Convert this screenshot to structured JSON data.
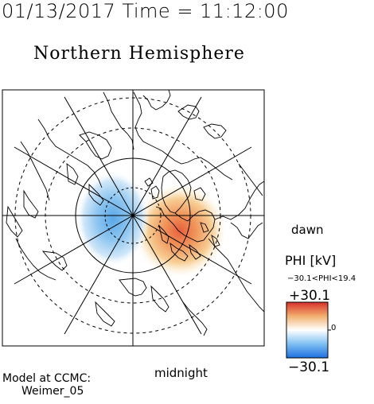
{
  "header": {
    "timestamp": "01/13/2017 Time = 11:12:00",
    "title": "Northern Hemisphere"
  },
  "map": {
    "labels": {
      "dawn": "dawn",
      "midnight": "midnight"
    },
    "projection": "polar",
    "grid_circles": 4,
    "meridian_spokes": 12,
    "potential_cells": [
      {
        "sign": "positive",
        "color": "#e8603c",
        "side": "dawn"
      },
      {
        "sign": "negative",
        "color": "#5aa8e8",
        "side": "dusk"
      }
    ]
  },
  "colorbar": {
    "title": "PHI [kV]",
    "range_text": "−30.1<PHI<19.4",
    "max_label": "+30.1",
    "min_label": "−30.1",
    "zero_label": "0",
    "colors": [
      "#1e6fe0",
      "#7fc0f2",
      "#ffffff",
      "#f2b070",
      "#d8302a"
    ]
  },
  "credit": {
    "line1": "Model at CCMC:",
    "line2": "Weimer_05"
  }
}
